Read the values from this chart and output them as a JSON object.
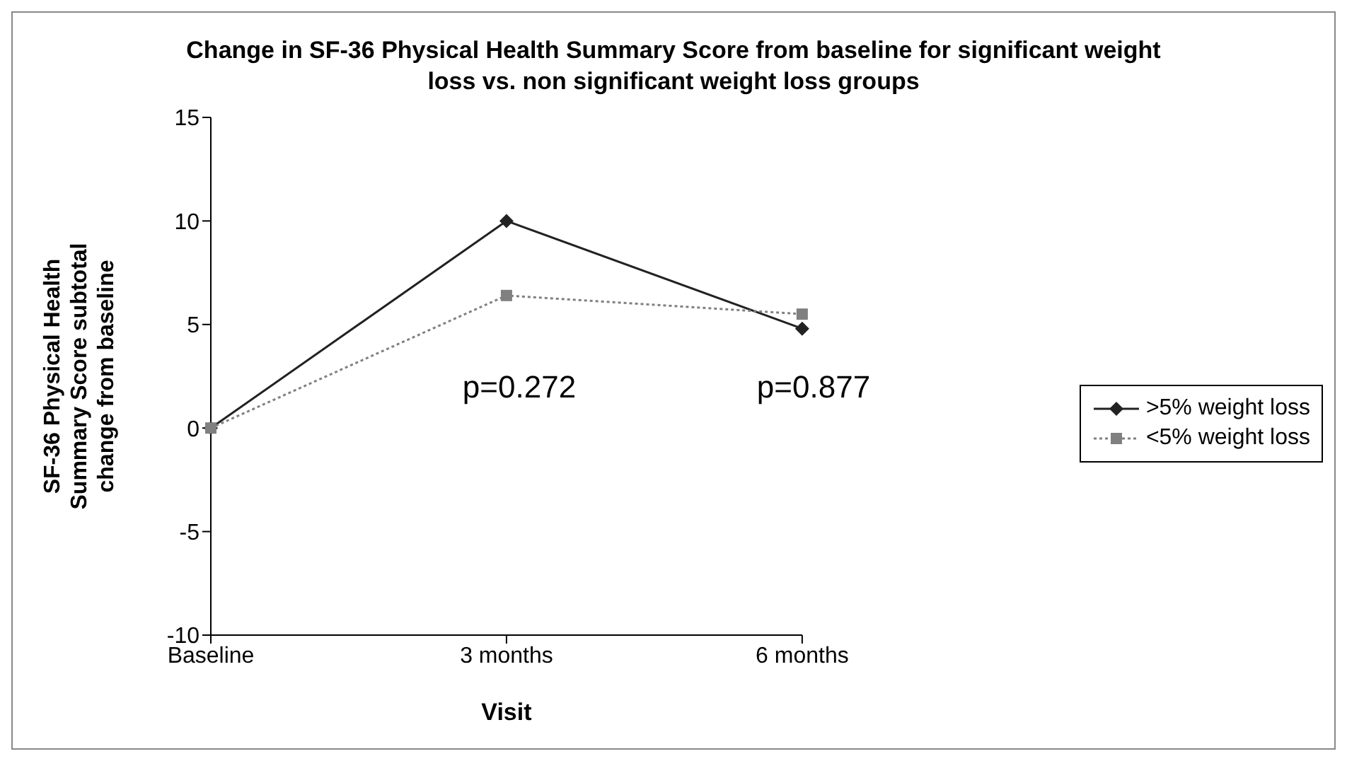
{
  "chart_data": {
    "type": "line",
    "title": "Change in SF-36 Physical Health Summary Score from baseline for significant weight loss vs. non significant weight loss groups",
    "xlabel": "Visit",
    "ylabel": "SF-36 Physical Health Summary Score subtotal change from baseline",
    "categories": [
      "Baseline",
      "3 months",
      "6 months"
    ],
    "series": [
      {
        "name": ">5% weight loss",
        "color": "#222222",
        "values": [
          0,
          10,
          4.8
        ],
        "marker": "diamond",
        "line_style": "solid"
      },
      {
        "name": "<5% weight loss",
        "color": "#808080",
        "values": [
          0,
          6.4,
          5.5
        ],
        "marker": "square",
        "line_style": "dotted"
      }
    ],
    "ylim": [
      -10,
      15
    ],
    "yticks": [
      -10,
      -5,
      0,
      5,
      10,
      15
    ],
    "legend": "right",
    "annotations": [
      "p=0.272",
      "p=0.877"
    ]
  }
}
